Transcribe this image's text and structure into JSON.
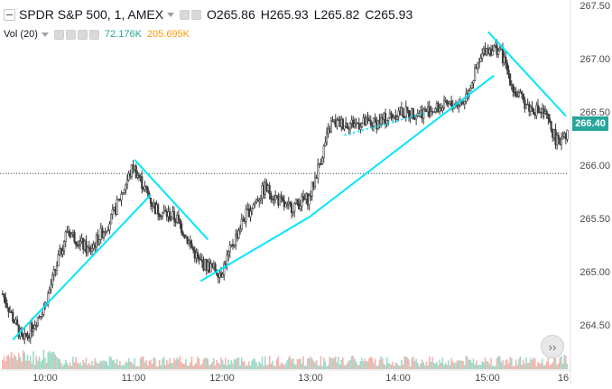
{
  "header": {
    "title": "SPDR S&P 500, 1, AMEX",
    "ohlc": {
      "open": "O265.86",
      "high": "H265.93",
      "low": "L265.82",
      "close": "C265.93"
    }
  },
  "volume_legend": {
    "label": "Vol (20)",
    "volume": "72.176K",
    "ma": "205.695K"
  },
  "price_axis": [
    "267.50",
    "267.00",
    "266.50",
    "266.00",
    "265.50",
    "265.00",
    "264.50"
  ],
  "current_price_tag": "266.40",
  "time_axis": [
    "10:00",
    "11:00",
    "12:00",
    "13:00",
    "14:00",
    "15:00",
    "16"
  ],
  "colors": {
    "up": "#26a69a",
    "down": "#ef5350",
    "candle_body": "#3c3c3c",
    "trendline": "#00e5ff",
    "volume_up": "#9fd9c8",
    "volume_down": "#f4b3ad",
    "price_tag": "#26a69a"
  },
  "icons": {
    "collapse": "collapse-icon",
    "settings": "gear-icon",
    "scroll_to_realtime": "scroll-to-realtime-icon"
  },
  "chart_data": {
    "type": "line",
    "title": "SPDR S&P 500, 1, AMEX",
    "xlabel": "",
    "ylabel": "",
    "x": [
      "9:31",
      "9:45",
      "10:00",
      "10:15",
      "10:30",
      "10:45",
      "11:00",
      "11:15",
      "11:30",
      "11:45",
      "12:00",
      "12:15",
      "12:30",
      "12:45",
      "13:00",
      "13:15",
      "13:30",
      "13:45",
      "14:00",
      "14:15",
      "14:30",
      "14:45",
      "15:00",
      "15:10",
      "15:20",
      "15:30",
      "15:40",
      "15:50",
      "16:00"
    ],
    "series": [
      {
        "values": [
          264.8,
          264.35,
          264.7,
          265.4,
          265.2,
          265.5,
          266.0,
          265.6,
          265.5,
          265.1,
          265.0,
          265.5,
          265.8,
          265.6,
          265.7,
          266.4,
          266.4,
          266.4,
          266.5,
          266.5,
          266.55,
          266.6,
          267.1,
          267.1,
          266.7,
          266.55,
          266.5,
          266.2,
          266.4
        ]
      }
    ],
    "ylim": [
      264.2,
      267.6
    ],
    "grid": false,
    "horizontal_reference_line": 265.93
  }
}
